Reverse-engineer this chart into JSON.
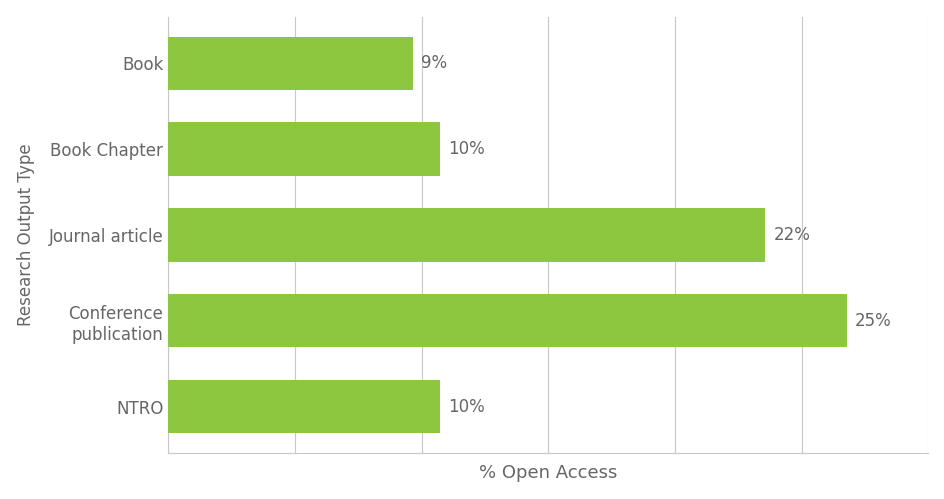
{
  "categories": [
    "Book",
    "Book Chapter",
    "Journal article",
    "Conference\npublication",
    "NTRO"
  ],
  "values": [
    9,
    10,
    22,
    25,
    10
  ],
  "bar_color": "#8DC63F",
  "xlabel": "% Open Access",
  "ylabel": "Research Output Type",
  "xlim": [
    0,
    28
  ],
  "num_gridlines": 6,
  "background_color": "#ffffff",
  "grid_color": "#c8c8c8",
  "label_color": "#666666",
  "bar_height": 0.62,
  "xlabel_fontsize": 13,
  "ylabel_fontsize": 12,
  "tick_label_fontsize": 12,
  "value_label_fontsize": 12
}
